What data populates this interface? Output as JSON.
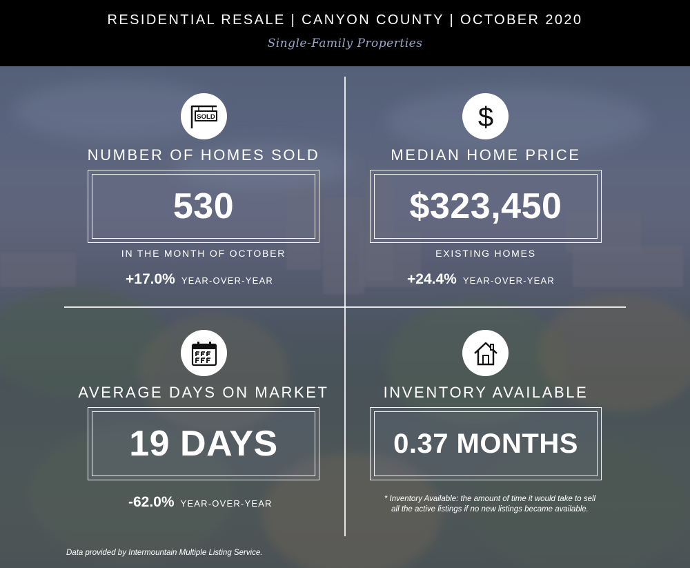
{
  "header": {
    "title": "RESIDENTIAL RESALE | CANYON COUNTY | OCTOBER 2020",
    "subtitle": "Single-Family Properties"
  },
  "homes_sold": {
    "icon": "sold-sign-icon",
    "icon_text": "SOLD",
    "title": "NUMBER OF HOMES SOLD",
    "value": "530",
    "caption": "IN THE MONTH OF OCTOBER",
    "yoy_pct": "+17.0%",
    "yoy_label": "YEAR-OVER-YEAR"
  },
  "median_price": {
    "icon": "dollar-icon",
    "title": "MEDIAN HOME PRICE",
    "value": "$323,450",
    "caption": "EXISTING HOMES",
    "yoy_pct": "+24.4%",
    "yoy_label": "YEAR-OVER-YEAR"
  },
  "days_on_market": {
    "icon": "calendar-icon",
    "title": "AVERAGE DAYS ON MARKET",
    "value": "19 DAYS",
    "yoy_pct": "-62.0%",
    "yoy_label": "YEAR-OVER-YEAR"
  },
  "inventory": {
    "icon": "house-icon",
    "title": "INVENTORY AVAILABLE",
    "value": "0.37 MONTHS",
    "footnote_line1": "* Inventory Available:  the amount of time it would take to sell",
    "footnote_line2": "all the active listings if no new listings became available."
  },
  "source": "Data provided by Intermountain Multiple Listing Service.",
  "colors": {
    "header_bg": "#000000",
    "subtitle": "#9aa9c9",
    "text": "#ffffff"
  }
}
